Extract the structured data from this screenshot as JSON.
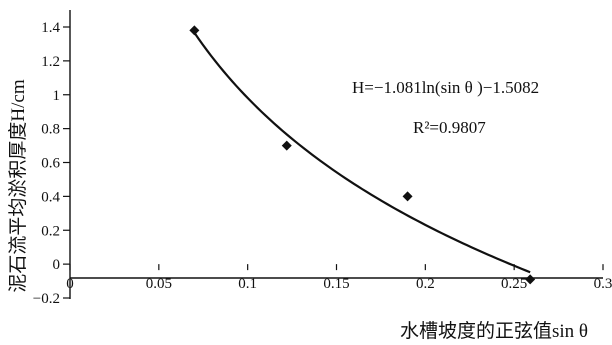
{
  "chart_data": {
    "type": "scatter",
    "xlabel": "水槽坡度的正弦值sin θ",
    "ylabel": "泥石流平均淤积厚度H/cm",
    "xlim": [
      0,
      0.3
    ],
    "ylim": [
      -0.2,
      1.4
    ],
    "xticks": [
      0,
      0.05,
      0.1,
      0.15,
      0.2,
      0.25,
      0.3
    ],
    "xtick_labels": [
      "0",
      "0.05",
      "0.1",
      "0.15",
      "0.2",
      "0.25",
      "0.3"
    ],
    "yticks": [
      -0.2,
      0,
      0.2,
      0.4,
      0.6,
      0.8,
      1,
      1.2,
      1.4
    ],
    "ytick_labels": [
      "−0.2",
      "0",
      "0.2",
      "0.4",
      "0.6",
      "0.8",
      "1",
      "1.2",
      "1.4"
    ],
    "grid": false,
    "legend": "none",
    "series": [
      {
        "kind": "points",
        "marker": "diamond",
        "x": [
          0.07,
          0.122,
          0.19,
          0.259
        ],
        "y": [
          1.38,
          0.7,
          0.4,
          -0.09
        ]
      },
      {
        "kind": "fitted-curve",
        "equation_form": "log",
        "coefficients": {
          "a": -1.081,
          "b": -1.5082
        },
        "x_range": [
          0.07,
          0.259
        ]
      }
    ],
    "annotations": {
      "equation": "H=−1.081ln(sin θ )−1.5082",
      "r_squared": "R²=0.9807"
    }
  }
}
